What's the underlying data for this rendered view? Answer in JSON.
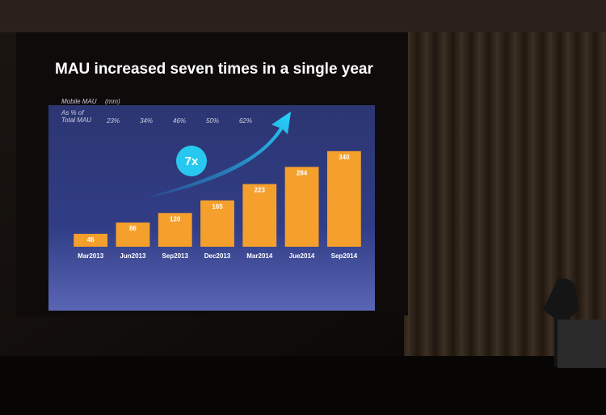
{
  "chart_data": {
    "type": "bar",
    "title": "MAU increased seven times in a single year",
    "y_label": "Mobile MAU",
    "y_unit": "(mm)",
    "share_label": [
      "As % of",
      "Total MAU"
    ],
    "share_of_total": [
      "23%",
      "34%",
      "46%",
      "50%",
      "62%",
      null,
      null
    ],
    "annotation": "7x",
    "categories": [
      "Mar2013",
      "Jun2013",
      "Sep2013",
      "Dec2013",
      "Mar2014",
      "Jue2014",
      "Sep2014"
    ],
    "values": [
      46,
      86,
      120,
      165,
      223,
      284,
      340
    ],
    "color": "#f5a02c",
    "ylim": [
      0,
      400
    ]
  }
}
